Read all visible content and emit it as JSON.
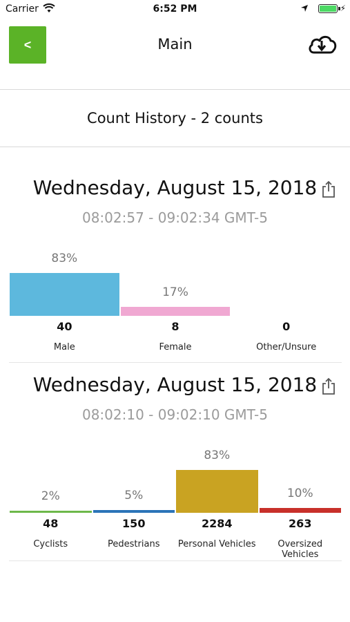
{
  "status_bar": {
    "carrier": "Carrier",
    "time": "6:52 PM"
  },
  "nav": {
    "back_label": "<",
    "title": "Main"
  },
  "history": {
    "title": "Count History - 2 counts"
  },
  "cards": [
    {
      "date": "Wednesday, August 15, 2018",
      "time_range": "08:02:57 - 09:02:34 GMT-5",
      "chart_data": {
        "type": "bar",
        "categories": [
          "Male",
          "Female",
          "Other/Unsure"
        ],
        "counts": [
          "40",
          "8",
          "0"
        ],
        "percents": [
          "83%",
          "17%",
          ""
        ],
        "values": [
          83,
          17,
          0
        ],
        "colors": [
          "#5db8dd",
          "#f0a8d2",
          "#cccccc"
        ]
      }
    },
    {
      "date": "Wednesday, August 15, 2018",
      "time_range": "08:02:10 - 09:02:10 GMT-5",
      "chart_data": {
        "type": "bar",
        "categories": [
          "Cyclists",
          "Pedestrians",
          "Personal Vehicles",
          "Oversized Vehicles"
        ],
        "counts": [
          "48",
          "150",
          "2284",
          "263"
        ],
        "percents": [
          "2%",
          "5%",
          "83%",
          "10%"
        ],
        "values": [
          2,
          5,
          83,
          10
        ],
        "colors": [
          "#6db84a",
          "#2b74b8",
          "#c9a322",
          "#c8302a"
        ]
      }
    }
  ]
}
